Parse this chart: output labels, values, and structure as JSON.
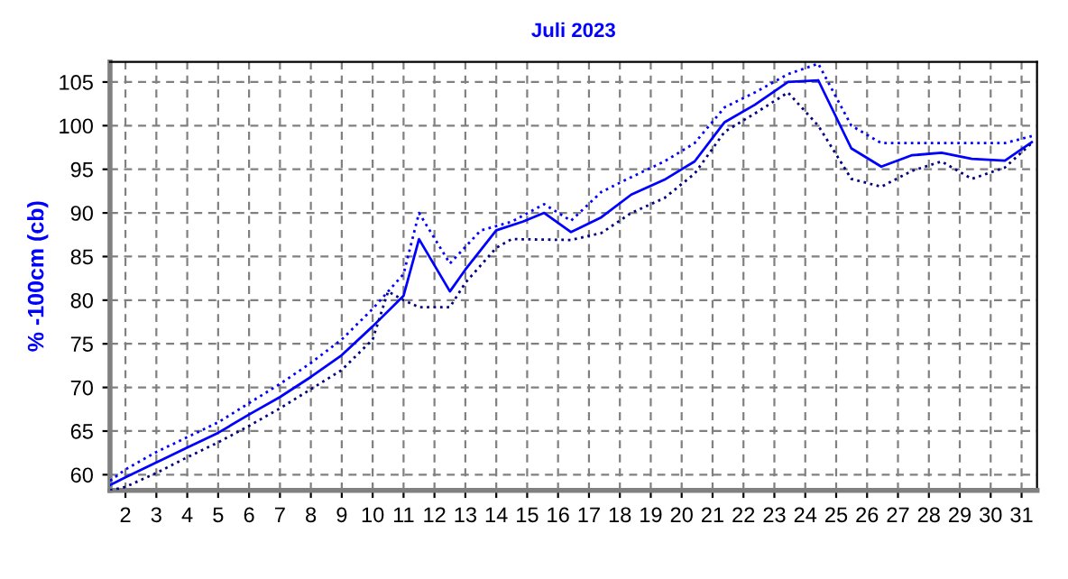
{
  "chart_data": {
    "type": "line",
    "title": "Juli 2023",
    "ylabel": "% -100cm (cb)",
    "xlim": [
      1.5,
      31.5
    ],
    "xticks": [
      2,
      3,
      4,
      5,
      6,
      7,
      8,
      9,
      10,
      11,
      12,
      13,
      14,
      15,
      16,
      17,
      18,
      19,
      20,
      21,
      22,
      23,
      24,
      25,
      26,
      27,
      28,
      29,
      30,
      31
    ],
    "ylim": [
      58.2,
      107.3
    ],
    "yticks": [
      60,
      65,
      70,
      75,
      80,
      85,
      90,
      95,
      100,
      105
    ],
    "grid": true,
    "legend": false,
    "series": [
      {
        "color": "#0000ff",
        "line_style": "solid",
        "x": [
          1.5,
          2,
          3,
          4,
          5,
          6,
          7,
          8,
          9,
          10,
          11,
          11.5,
          12,
          12.5,
          13,
          14,
          14.86,
          15.55,
          16.42,
          17.4,
          18.37,
          19.44,
          20.42,
          21.39,
          22.37,
          23.44,
          24.42,
          25.49,
          26.46,
          27.44,
          28.41,
          29.39,
          30.46,
          31.33
        ],
        "values": [
          58.8,
          59.7,
          61.4,
          63.1,
          64.8,
          66.9,
          68.9,
          71.2,
          73.7,
          77,
          80.5,
          87,
          84,
          81,
          83.5,
          88,
          89,
          90,
          87.8,
          89.5,
          92.1,
          93.8,
          95.9,
          100.4,
          102.4,
          105,
          105.2,
          97.4,
          95.3,
          96.6,
          96.9,
          96.2,
          96,
          98.1
        ]
      },
      {
        "color": "#0000ff",
        "line_style": "dotted",
        "x": [
          1.5,
          2,
          3,
          4,
          5,
          6,
          7,
          8,
          9,
          10,
          11,
          11.5,
          12.5,
          13.5,
          14.5,
          15.55,
          16.42,
          17.4,
          18.37,
          19.44,
          20.42,
          21.39,
          22.37,
          23.44,
          24.42,
          25.49,
          26.46,
          28.41,
          30.46,
          31.33
        ],
        "values": [
          59.3,
          60.6,
          62.6,
          64.3,
          66,
          68.2,
          70.4,
          72.8,
          75.5,
          79,
          83,
          90,
          84.2,
          88,
          89,
          91,
          89.1,
          92.4,
          94.1,
          95.9,
          98,
          102.1,
          103.8,
          105.9,
          107.1,
          100,
          98,
          98,
          98,
          98.8
        ]
      },
      {
        "color": "#000080",
        "line_style": "dotted",
        "x": [
          1.5,
          2,
          3,
          4,
          5,
          6,
          7,
          8,
          9,
          10,
          10.5,
          11,
          11.5,
          12.5,
          13,
          14,
          14.5,
          16.42,
          17.4,
          18.37,
          19.44,
          20.42,
          21.39,
          22.37,
          23.44,
          24.42,
          25.49,
          26.46,
          27.44,
          28.41,
          29.39,
          30.46,
          31.33
        ],
        "values": [
          58.2,
          58.6,
          60.2,
          62,
          63.7,
          65.6,
          67.6,
          69.8,
          72,
          75.5,
          81,
          80,
          79.2,
          79.2,
          82,
          86,
          87,
          86.9,
          87.7,
          90,
          91.7,
          94.5,
          99.3,
          101.4,
          103.8,
          100,
          93.9,
          93,
          94.8,
          95.9,
          93.9,
          95.2,
          98
        ]
      }
    ]
  }
}
